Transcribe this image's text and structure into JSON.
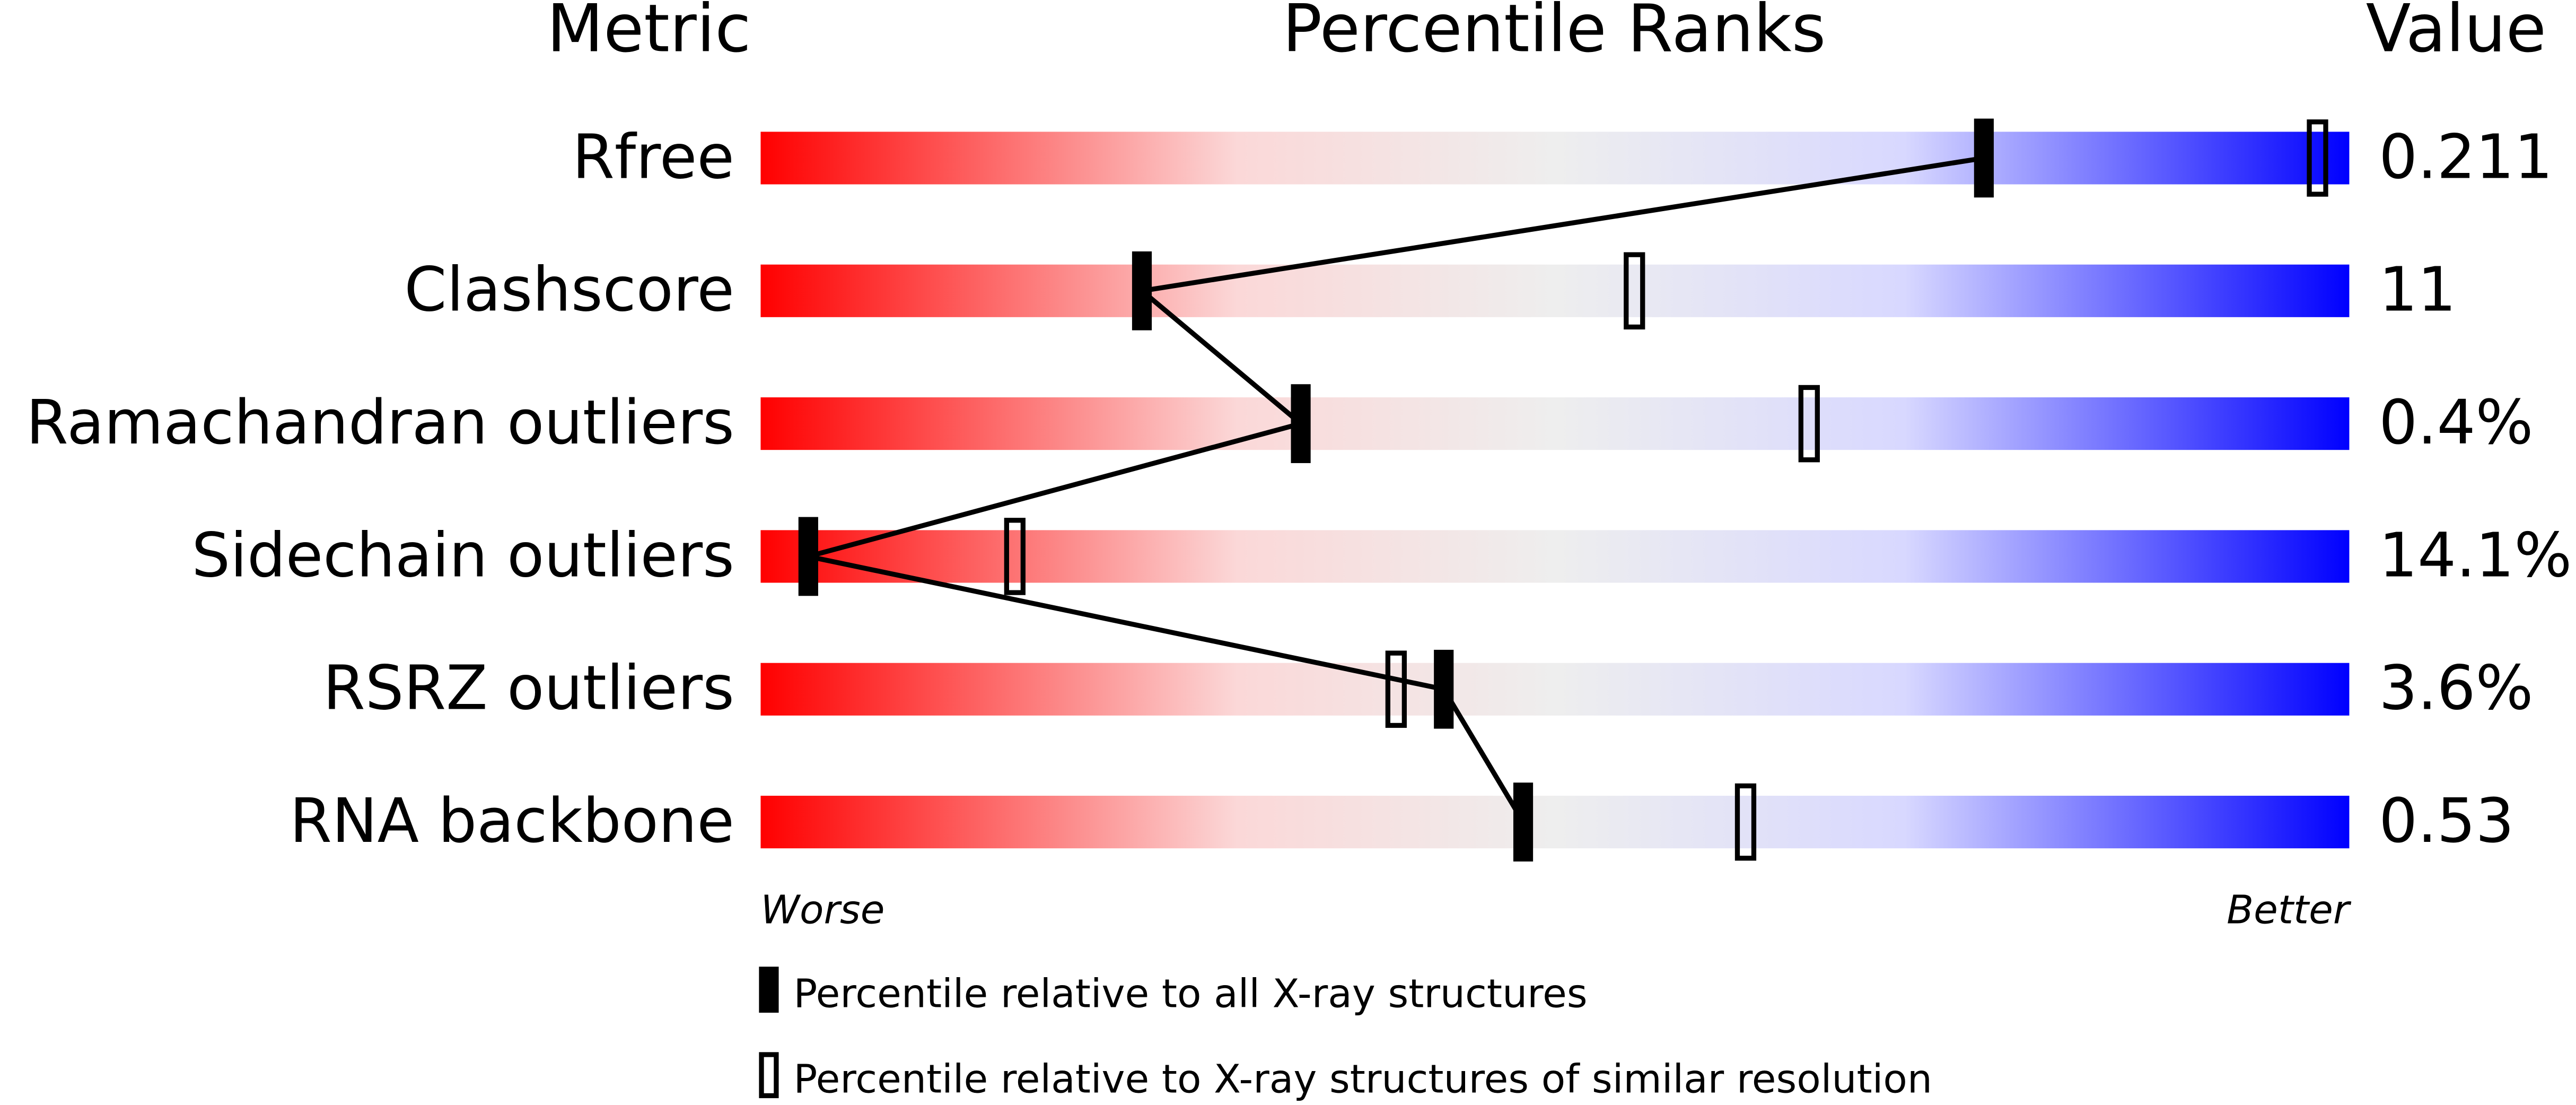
{
  "chart_data": {
    "type": "percentile",
    "title": "Percentile Ranks",
    "metric_header": "Metric",
    "value_header": "Value",
    "categories": [
      "Rfree",
      "Clashscore",
      "Ramachandran outliers",
      "Sidechain outliers",
      "RSRZ outliers",
      "RNA backbone"
    ],
    "metric_values": [
      "0.211",
      "11",
      "0.4%",
      "14.1%",
      "3.6%",
      "0.53"
    ],
    "series": [
      {
        "name": "Percentile relative to all X-ray structures",
        "color": "#000000",
        "values": [
          77,
          24,
          34,
          3,
          43,
          48
        ]
      },
      {
        "name": "Percentile relative to X-ray structures of similar resolution",
        "color": "#000000",
        "values": [
          98,
          55,
          66,
          16,
          40,
          62
        ]
      }
    ],
    "xlim": [
      0,
      100
    ],
    "x_low_label": "Worse",
    "x_high_label": "Better"
  }
}
